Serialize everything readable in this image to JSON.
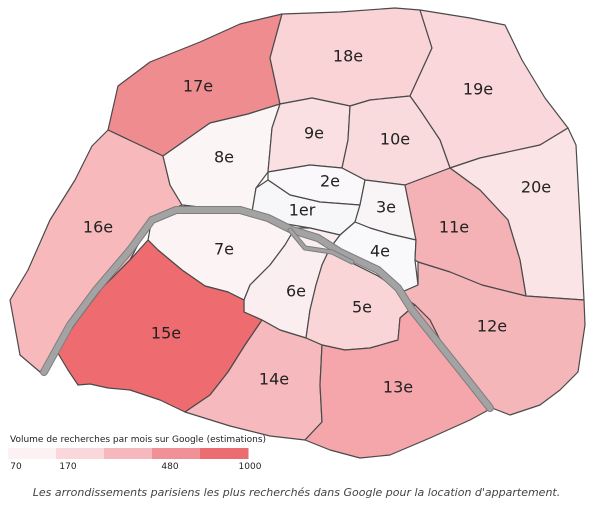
{
  "legend": {
    "title": "Volume de recherches par mois sur Google (estimations)",
    "ticks": [
      "70",
      "170",
      "480",
      "1000"
    ],
    "tick_values": [
      70,
      170,
      480,
      1000
    ],
    "colors": [
      "#fdf2f3",
      "#f9d7da",
      "#f5b8bc",
      "#ef9196",
      "#eb6c71"
    ]
  },
  "districts": [
    {
      "id": "1er",
      "label": "1er",
      "color": "#f7f6f9"
    },
    {
      "id": "2e",
      "label": "2e",
      "color": "#faf8fa"
    },
    {
      "id": "3e",
      "label": "3e",
      "color": "#f9f5f7"
    },
    {
      "id": "4e",
      "label": "4e",
      "color": "#f9f8fa"
    },
    {
      "id": "5e",
      "label": "5e",
      "color": "#f9d5d8"
    },
    {
      "id": "6e",
      "label": "6e",
      "color": "#fbeef0"
    },
    {
      "id": "7e",
      "label": "7e",
      "color": "#fcf3f5"
    },
    {
      "id": "8e",
      "label": "8e",
      "color": "#fcf5f6"
    },
    {
      "id": "9e",
      "label": "9e",
      "color": "#fae0e3"
    },
    {
      "id": "10e",
      "label": "10e",
      "color": "#f9dadd"
    },
    {
      "id": "11e",
      "label": "11e",
      "color": "#f4b2b6"
    },
    {
      "id": "12e",
      "label": "12e",
      "color": "#f5b6ba"
    },
    {
      "id": "13e",
      "label": "13e",
      "color": "#f4a6ab"
    },
    {
      "id": "14e",
      "label": "14e",
      "color": "#f6b9bd"
    },
    {
      "id": "15e",
      "label": "15e",
      "color": "#ee6b70"
    },
    {
      "id": "16e",
      "label": "16e",
      "color": "#f7b9bc"
    },
    {
      "id": "17e",
      "label": "17e",
      "color": "#ef8c90"
    },
    {
      "id": "18e",
      "label": "18e",
      "color": "#f9d3d6"
    },
    {
      "id": "19e",
      "label": "19e",
      "color": "#f9d7da"
    },
    {
      "id": "20e",
      "label": "20e",
      "color": "#fbe4e6"
    }
  ],
  "caption": "Les arrondissements parisiens les plus recherchés dans Google pour la location d'appartement."
}
